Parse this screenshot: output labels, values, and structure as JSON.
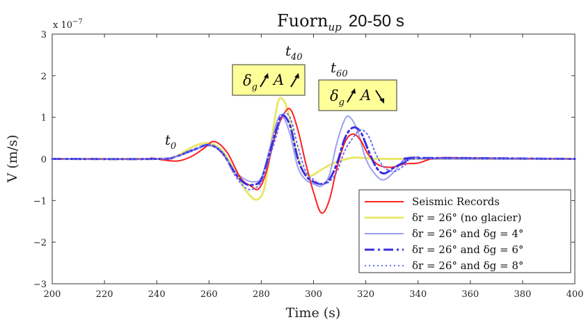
{
  "chart_data": {
    "type": "line",
    "title_main": "Fuorn",
    "title_sub": "up",
    "title_suffix": "20-50 s",
    "xlabel": "Time (s)",
    "ylabel": "V (m/s)",
    "y_multiplier": "x 10",
    "y_exponent": "−7",
    "xlim": [
      200,
      400
    ],
    "ylim": [
      -3,
      3
    ],
    "xticks": [
      200,
      220,
      240,
      260,
      280,
      300,
      320,
      340,
      360,
      380,
      400
    ],
    "yticks": [
      -3,
      -2,
      -1,
      0,
      1,
      2,
      3
    ],
    "ytick_labels": [
      "−3",
      "−2",
      "−1",
      "0",
      "1",
      "2",
      "3"
    ],
    "grid": false,
    "legend_position": "bottom-right",
    "annotations": [
      {
        "label": "t",
        "sub": "0"
      },
      {
        "label": "t",
        "sub": "40"
      },
      {
        "label": "t",
        "sub": "60"
      }
    ],
    "boxes": [
      {
        "delta_sub": "g",
        "a_arrow": "up",
        "fill": "#ffff99"
      },
      {
        "delta_sub": "g",
        "a_arrow": "down",
        "fill": "#ffff99"
      }
    ],
    "series": [
      {
        "name": "Seismic Records",
        "color": "#ff2020",
        "style": "solid",
        "points": [
          [
            200,
            0
          ],
          [
            235,
            0
          ],
          [
            238,
            0.02
          ],
          [
            242,
            -0.02
          ],
          [
            248,
            -0.05
          ],
          [
            253,
            0.05
          ],
          [
            258,
            0.25
          ],
          [
            262,
            0.42
          ],
          [
            267,
            0.15
          ],
          [
            272,
            -0.45
          ],
          [
            276,
            -0.65
          ],
          [
            279,
            -0.72
          ],
          [
            282,
            -0.3
          ],
          [
            285,
            0.5
          ],
          [
            288,
            1.0
          ],
          [
            291,
            1.2
          ],
          [
            294,
            0.7
          ],
          [
            297,
            -0.1
          ],
          [
            300,
            -0.8
          ],
          [
            303,
            -1.3
          ],
          [
            306,
            -1.0
          ],
          [
            309,
            -0.2
          ],
          [
            312,
            0.4
          ],
          [
            315,
            0.6
          ],
          [
            318,
            0.45
          ],
          [
            321,
            0.1
          ],
          [
            325,
            -0.15
          ],
          [
            330,
            -0.2
          ],
          [
            335,
            -0.12
          ],
          [
            340,
            -0.1
          ],
          [
            345,
            0
          ],
          [
            350,
            0.03
          ],
          [
            360,
            0.02
          ],
          [
            400,
            0
          ]
        ]
      },
      {
        "name": "δr = 26° (no glacier)",
        "color": "#e8e86a",
        "style": "solid",
        "points": [
          [
            200,
            0
          ],
          [
            240,
            0
          ],
          [
            247,
            0.05
          ],
          [
            254,
            0.3
          ],
          [
            260,
            0.38
          ],
          [
            265,
            0.2
          ],
          [
            270,
            -0.3
          ],
          [
            274,
            -0.75
          ],
          [
            278,
            -0.98
          ],
          [
            281,
            -0.75
          ],
          [
            283,
            0.0
          ],
          [
            285,
            0.9
          ],
          [
            287,
            1.45
          ],
          [
            290,
            1.2
          ],
          [
            293,
            0.3
          ],
          [
            296,
            -0.3
          ],
          [
            299,
            -0.4
          ],
          [
            302,
            -0.3
          ],
          [
            306,
            -0.15
          ],
          [
            310,
            -0.05
          ],
          [
            315,
            0.03
          ],
          [
            320,
            0.02
          ],
          [
            330,
            0
          ],
          [
            400,
            0
          ]
        ]
      },
      {
        "name": "δr = 26° and δg = 4°",
        "color": "#9a9ef0",
        "style": "solid",
        "points": [
          [
            200,
            0
          ],
          [
            240,
            0
          ],
          [
            247,
            0.05
          ],
          [
            254,
            0.2
          ],
          [
            260,
            0.32
          ],
          [
            265,
            0.15
          ],
          [
            270,
            -0.3
          ],
          [
            274,
            -0.5
          ],
          [
            277,
            -0.55
          ],
          [
            280,
            -0.45
          ],
          [
            283,
            0.2
          ],
          [
            286,
            0.9
          ],
          [
            288,
            1.05
          ],
          [
            291,
            0.6
          ],
          [
            294,
            -0.2
          ],
          [
            297,
            -0.5
          ],
          [
            300,
            -0.6
          ],
          [
            303,
            -0.65
          ],
          [
            306,
            -0.4
          ],
          [
            309,
            0.4
          ],
          [
            312,
            0.95
          ],
          [
            314,
            1.0
          ],
          [
            317,
            0.65
          ],
          [
            320,
            0.0
          ],
          [
            324,
            -0.4
          ],
          [
            327,
            -0.5
          ],
          [
            331,
            -0.3
          ],
          [
            335,
            0
          ],
          [
            340,
            0.05
          ],
          [
            345,
            0
          ],
          [
            400,
            0
          ]
        ]
      },
      {
        "name": "δr = 26° and δg = 6°",
        "color": "#3a2ee0",
        "style": "dashdot",
        "points": [
          [
            200,
            0
          ],
          [
            240,
            0
          ],
          [
            247,
            0.05
          ],
          [
            254,
            0.22
          ],
          [
            260,
            0.34
          ],
          [
            265,
            0.15
          ],
          [
            270,
            -0.35
          ],
          [
            274,
            -0.6
          ],
          [
            277,
            -0.62
          ],
          [
            280,
            -0.5
          ],
          [
            283,
            0.1
          ],
          [
            286,
            0.75
          ],
          [
            288,
            1.05
          ],
          [
            291,
            0.8
          ],
          [
            294,
            0.0
          ],
          [
            297,
            -0.4
          ],
          [
            300,
            -0.55
          ],
          [
            303,
            -0.6
          ],
          [
            306,
            -0.5
          ],
          [
            309,
            -0.1
          ],
          [
            312,
            0.5
          ],
          [
            315,
            0.75
          ],
          [
            318,
            0.65
          ],
          [
            321,
            0.2
          ],
          [
            324,
            -0.2
          ],
          [
            327,
            -0.35
          ],
          [
            331,
            -0.2
          ],
          [
            336,
            -0.05
          ],
          [
            340,
            0.02
          ],
          [
            400,
            0
          ]
        ]
      },
      {
        "name": "δr = 26° and δg = 8°",
        "color": "#6a6ef0",
        "style": "dotted",
        "points": [
          [
            200,
            0
          ],
          [
            240,
            0
          ],
          [
            247,
            0.05
          ],
          [
            254,
            0.22
          ],
          [
            260,
            0.35
          ],
          [
            265,
            0.15
          ],
          [
            270,
            -0.4
          ],
          [
            274,
            -0.7
          ],
          [
            277,
            -0.72
          ],
          [
            280,
            -0.55
          ],
          [
            283,
            0.0
          ],
          [
            286,
            0.6
          ],
          [
            288,
            1.05
          ],
          [
            291,
            1.0
          ],
          [
            294,
            0.3
          ],
          [
            297,
            -0.3
          ],
          [
            300,
            -0.5
          ],
          [
            303,
            -0.6
          ],
          [
            306,
            -0.55
          ],
          [
            309,
            -0.3
          ],
          [
            312,
            0.2
          ],
          [
            315,
            0.5
          ],
          [
            318,
            0.7
          ],
          [
            321,
            0.55
          ],
          [
            324,
            0.1
          ],
          [
            327,
            -0.2
          ],
          [
            331,
            -0.3
          ],
          [
            335,
            -0.15
          ],
          [
            340,
            0
          ],
          [
            400,
            0
          ]
        ]
      }
    ]
  }
}
